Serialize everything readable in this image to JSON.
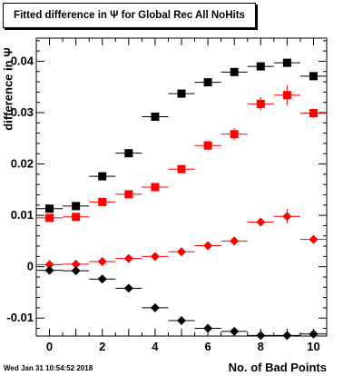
{
  "title": "Fitted difference in Ψ  for Global Rec All NoHits",
  "timestamp": "Wed Jan 31 10:54:52 2018",
  "chart_data": {
    "type": "scatter",
    "title": "Fitted difference in Ψ  for Global Rec All NoHits",
    "xlabel": "No. of Bad Points",
    "ylabel": "difference in Ψ",
    "xlim": [
      -0.5,
      10.5
    ],
    "ylim": [
      -0.0135,
      0.0445
    ],
    "x_ticks": [
      0,
      2,
      4,
      6,
      8,
      10
    ],
    "x_tick_labels": [
      "0",
      "2",
      "4",
      "6",
      "8",
      "10"
    ],
    "y_ticks": [
      -0.01,
      0,
      0.01,
      0.02,
      0.03,
      0.04
    ],
    "y_tick_labels": [
      "-0.01",
      "0",
      "0.01",
      "0.02",
      "0.03",
      "0.04"
    ],
    "grid": false,
    "x": [
      0,
      1,
      2,
      3,
      4,
      5,
      6,
      7,
      8,
      9,
      10
    ],
    "series": [
      {
        "marker": "square",
        "color": "#000000",
        "values": [
          0.0113,
          0.0118,
          0.0176,
          0.0221,
          0.0292,
          0.0337,
          0.0359,
          0.0379,
          0.039,
          0.0397,
          0.0371
        ],
        "errors": [
          0.0004,
          0.0004,
          0.0005,
          0.0005,
          0.0006,
          0.0006,
          0.0006,
          0.0006,
          0.0007,
          0.0007,
          0.0007
        ]
      },
      {
        "marker": "square",
        "color": "#ff0000",
        "values": [
          0.0095,
          0.0097,
          0.0126,
          0.0141,
          0.0155,
          0.019,
          0.0236,
          0.0258,
          0.0317,
          0.0334,
          0.0299
        ],
        "errors": [
          0.0005,
          0.0005,
          0.0006,
          0.0006,
          0.0007,
          0.0007,
          0.0009,
          0.0012,
          0.0013,
          0.002,
          0.0009
        ]
      },
      {
        "marker": "diamond",
        "color": "#ff0000",
        "values": [
          0.0004,
          0.0005,
          0.001,
          0.0016,
          0.002,
          0.0029,
          0.0041,
          0.005,
          0.0087,
          0.0098,
          0.0053
        ],
        "errors": [
          0.0003,
          0.0003,
          0.0004,
          0.0004,
          0.0004,
          0.0005,
          0.0006,
          0.0007,
          0.0008,
          0.0014,
          0.0007
        ]
      },
      {
        "marker": "diamond",
        "color": "#000000",
        "values": [
          -0.0007,
          -0.0008,
          -0.0024,
          -0.0042,
          -0.008,
          -0.0105,
          -0.012,
          -0.0126,
          -0.0134,
          -0.0134,
          -0.0131
        ],
        "errors": [
          0.0003,
          0.0003,
          0.0004,
          0.0004,
          0.0004,
          0.0005,
          0.0005,
          0.0005,
          0.0006,
          0.0006,
          0.0006
        ]
      }
    ]
  }
}
